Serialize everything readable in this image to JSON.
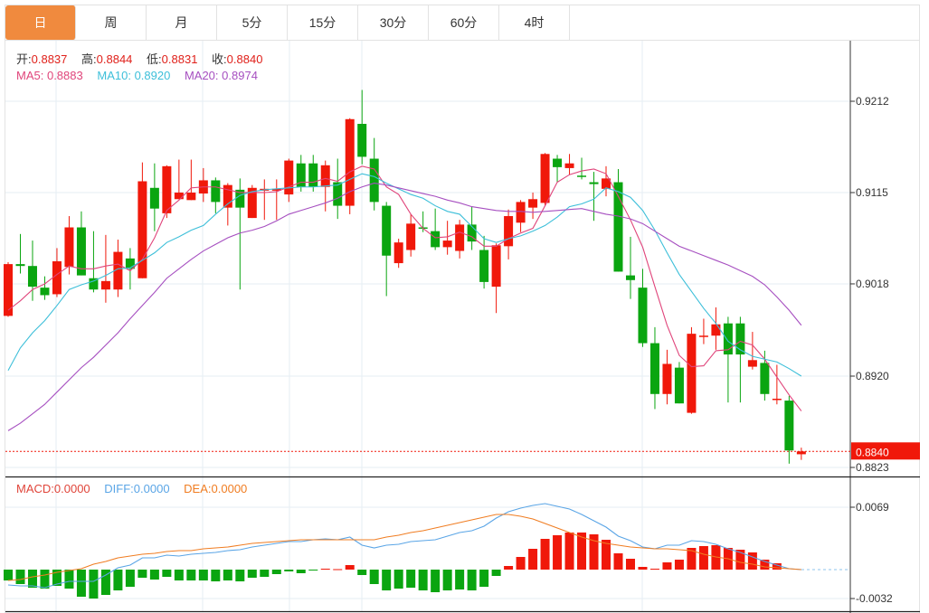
{
  "tabs": [
    {
      "label": "日",
      "active": true
    },
    {
      "label": "周",
      "active": false
    },
    {
      "label": "月",
      "active": false
    },
    {
      "label": "5分",
      "active": false
    },
    {
      "label": "15分",
      "active": false
    },
    {
      "label": "30分",
      "active": false
    },
    {
      "label": "60分",
      "active": false
    },
    {
      "label": "4时",
      "active": false
    }
  ],
  "ohlc_info": {
    "open_label": "开:",
    "open": "0.8837",
    "high_label": "高:",
    "high": "0.8844",
    "low_label": "低:",
    "low": "0.8831",
    "close_label": "收:",
    "close": "0.8840"
  },
  "ma_info": {
    "ma5_label": "MA5:",
    "ma5": "0.8883",
    "ma10_label": "MA10:",
    "ma10": "0.8920",
    "ma20_label": "MA20:",
    "ma20": "0.8974"
  },
  "macd_info": {
    "macd_label": "MACD:",
    "macd": "0.0000",
    "diff_label": "DIFF:",
    "diff": "0.0000",
    "dea_label": "DEA:",
    "dea": "0.0000"
  },
  "colors": {
    "up": "#f0180a",
    "down": "#0aa510",
    "ma5": "#e0457b",
    "ma10": "#3dbfd9",
    "ma20": "#a64fc0",
    "diff": "#5aa5e6",
    "dea": "#f07d22",
    "accent": "#f08a3e",
    "grid": "#e6edf3"
  },
  "chart_data": [
    {
      "type": "candlestick",
      "title": "Daily K-line",
      "price_axis_ticks": [
        "0.9212",
        "0.9115",
        "0.9018",
        "0.8920",
        "0.8823"
      ],
      "ylim": [
        0.8805,
        0.927
      ],
      "current_price": "0.8840",
      "candles_ohlc": [
        [
          0.8984,
          0.9041,
          0.8983,
          0.9039
        ],
        [
          0.9039,
          0.9071,
          0.9029,
          0.9037
        ],
        [
          0.9037,
          0.9064,
          0.9,
          0.9015
        ],
        [
          0.9014,
          0.9026,
          0.9001,
          0.9006
        ],
        [
          0.9007,
          0.9056,
          0.9004,
          0.9042
        ],
        [
          0.9036,
          0.909,
          0.9028,
          0.9078
        ],
        [
          0.9078,
          0.9095,
          0.9027,
          0.9027
        ],
        [
          0.9024,
          0.9074,
          0.9009,
          0.9012
        ],
        [
          0.9012,
          0.907,
          0.8998,
          0.9021
        ],
        [
          0.9012,
          0.9065,
          0.9004,
          0.9052
        ],
        [
          0.9045,
          0.9056,
          0.9012,
          0.9034
        ],
        [
          0.9024,
          0.9147,
          0.9024,
          0.9127
        ],
        [
          0.912,
          0.9146,
          0.9074,
          0.9098
        ],
        [
          0.9093,
          0.9144,
          0.9088,
          0.9143
        ],
        [
          0.9108,
          0.915,
          0.9108,
          0.9115
        ],
        [
          0.9107,
          0.915,
          0.9107,
          0.9115
        ],
        [
          0.9114,
          0.9141,
          0.9105,
          0.9128
        ],
        [
          0.9128,
          0.9131,
          0.9093,
          0.9105
        ],
        [
          0.9099,
          0.9125,
          0.908,
          0.9123
        ],
        [
          0.9118,
          0.913,
          0.9012,
          0.9099
        ],
        [
          0.9088,
          0.9123,
          0.9088,
          0.912
        ],
        [
          0.9117,
          0.9129,
          0.9086,
          0.9119
        ],
        [
          0.9117,
          0.9129,
          0.9086,
          0.9119
        ],
        [
          0.9113,
          0.9151,
          0.9105,
          0.9149
        ],
        [
          0.9146,
          0.9155,
          0.9116,
          0.9121
        ],
        [
          0.9146,
          0.9155,
          0.9116,
          0.9121
        ],
        [
          0.9121,
          0.9149,
          0.9095,
          0.9144
        ],
        [
          0.9126,
          0.9151,
          0.9087,
          0.9101
        ],
        [
          0.9101,
          0.9194,
          0.9092,
          0.9193
        ],
        [
          0.9188,
          0.9224,
          0.9145,
          0.9153
        ],
        [
          0.9151,
          0.9173,
          0.9096,
          0.9105
        ],
        [
          0.9101,
          0.9105,
          0.9005,
          0.9048
        ],
        [
          0.904,
          0.9066,
          0.9035,
          0.9062
        ],
        [
          0.9054,
          0.9092,
          0.9047,
          0.9082
        ],
        [
          0.9078,
          0.9095,
          0.9073,
          0.9077
        ],
        [
          0.9074,
          0.9098,
          0.9054,
          0.9057
        ],
        [
          0.9057,
          0.9085,
          0.9049,
          0.9064
        ],
        [
          0.9053,
          0.9086,
          0.9045,
          0.9081
        ],
        [
          0.9081,
          0.91,
          0.9054,
          0.9063
        ],
        [
          0.9054,
          0.9069,
          0.9013,
          0.902
        ],
        [
          0.9015,
          0.9061,
          0.8987,
          0.9059
        ],
        [
          0.9058,
          0.9097,
          0.9044,
          0.909
        ],
        [
          0.9083,
          0.9107,
          0.9073,
          0.9105
        ],
        [
          0.9099,
          0.9115,
          0.9087,
          0.9108
        ],
        [
          0.9104,
          0.9157,
          0.9101,
          0.9156
        ],
        [
          0.9151,
          0.9155,
          0.9126,
          0.9142
        ],
        [
          0.9141,
          0.9156,
          0.9134,
          0.9146
        ],
        [
          0.9133,
          0.9152,
          0.9129,
          0.9132
        ],
        [
          0.9126,
          0.9137,
          0.9085,
          0.9124
        ],
        [
          0.9119,
          0.9143,
          0.9111,
          0.913
        ],
        [
          0.9126,
          0.914,
          0.9031,
          0.9031
        ],
        [
          0.9027,
          0.9068,
          0.9002,
          0.9022
        ],
        [
          0.9014,
          0.9034,
          0.8951,
          0.8955
        ],
        [
          0.8955,
          0.8972,
          0.8885,
          0.8901
        ],
        [
          0.8901,
          0.8948,
          0.889,
          0.8933
        ],
        [
          0.8929,
          0.8935,
          0.8891,
          0.8891
        ],
        [
          0.8881,
          0.8972,
          0.888,
          0.8965
        ],
        [
          0.8962,
          0.8981,
          0.8954,
          0.8963
        ],
        [
          0.8963,
          0.8993,
          0.8948,
          0.8975
        ],
        [
          0.8976,
          0.8983,
          0.8892,
          0.8943
        ],
        [
          0.8976,
          0.8983,
          0.8892,
          0.8943
        ],
        [
          0.893,
          0.8967,
          0.8927,
          0.8937
        ],
        [
          0.8934,
          0.8947,
          0.8894,
          0.8901
        ],
        [
          0.8895,
          0.8932,
          0.889,
          0.8896
        ],
        [
          0.8894,
          0.8899,
          0.8827,
          0.8841
        ],
        [
          0.8837,
          0.8844,
          0.8831,
          0.884
        ]
      ],
      "series": [
        {
          "name": "MA5",
          "values": [
            0.899,
            0.9,
            0.9012,
            0.9018,
            0.9028,
            0.9037,
            0.9034,
            0.9034,
            0.9037,
            0.9039,
            0.9032,
            0.9044,
            0.9067,
            0.9096,
            0.9107,
            0.912,
            0.9121,
            0.9121,
            0.9118,
            0.9115,
            0.9115,
            0.9115,
            0.9116,
            0.9121,
            0.9126,
            0.9126,
            0.913,
            0.9127,
            0.9137,
            0.9143,
            0.914,
            0.9121,
            0.9113,
            0.9092,
            0.9077,
            0.9067,
            0.9068,
            0.9073,
            0.9068,
            0.9058,
            0.9058,
            0.9066,
            0.9072,
            0.9077,
            0.9101,
            0.9126,
            0.9134,
            0.9138,
            0.914,
            0.9135,
            0.9111,
            0.9086,
            0.9057,
            0.9015,
            0.8974,
            0.8942,
            0.893,
            0.8931,
            0.8947,
            0.8948,
            0.8957,
            0.8953,
            0.8938,
            0.8919,
            0.89,
            0.8883
          ]
        },
        {
          "name": "MA10",
          "values": [
            0.8926,
            0.895,
            0.8966,
            0.8979,
            0.8995,
            0.9012,
            0.9017,
            0.9021,
            0.9027,
            0.9034,
            0.9035,
            0.9043,
            0.9051,
            0.9062,
            0.9068,
            0.9075,
            0.908,
            0.9092,
            0.9103,
            0.9112,
            0.9116,
            0.9118,
            0.9119,
            0.912,
            0.9121,
            0.9121,
            0.9122,
            0.9123,
            0.9129,
            0.9135,
            0.9132,
            0.9125,
            0.9119,
            0.9113,
            0.9109,
            0.9101,
            0.9095,
            0.9092,
            0.9079,
            0.9066,
            0.9062,
            0.9066,
            0.9069,
            0.9074,
            0.908,
            0.9089,
            0.91,
            0.9103,
            0.9108,
            0.912,
            0.9116,
            0.911,
            0.9096,
            0.9075,
            0.9051,
            0.9028,
            0.901,
            0.8992,
            0.8976,
            0.8957,
            0.8948,
            0.8941,
            0.8938,
            0.8935,
            0.8928,
            0.892
          ]
        },
        {
          "name": "MA20",
          "values": [
            0.8862,
            0.887,
            0.888,
            0.889,
            0.8903,
            0.8916,
            0.8929,
            0.894,
            0.8953,
            0.8966,
            0.8981,
            0.8995,
            0.9009,
            0.9024,
            0.9034,
            0.9044,
            0.9053,
            0.906,
            0.9067,
            0.9072,
            0.9075,
            0.9079,
            0.9085,
            0.9092,
            0.9096,
            0.91,
            0.9104,
            0.9109,
            0.9116,
            0.9121,
            0.9125,
            0.9123,
            0.912,
            0.9117,
            0.9114,
            0.9111,
            0.9107,
            0.9104,
            0.91,
            0.9098,
            0.9096,
            0.9095,
            0.9095,
            0.9094,
            0.9095,
            0.9096,
            0.9097,
            0.9098,
            0.9095,
            0.9092,
            0.909,
            0.9087,
            0.9082,
            0.9074,
            0.9066,
            0.9058,
            0.9053,
            0.9048,
            0.9043,
            0.9038,
            0.9032,
            0.9026,
            0.9017,
            0.9004,
            0.899,
            0.8974
          ]
        }
      ]
    },
    {
      "type": "bar+line",
      "title": "MACD",
      "axis_ticks": [
        "0.0069",
        "-0.0032"
      ],
      "ylim": [
        -0.0045,
        0.009
      ],
      "macd_histogram": [
        -0.0012,
        -0.0016,
        -0.002,
        -0.0021,
        -0.0018,
        -0.0021,
        -0.003,
        -0.0032,
        -0.0028,
        -0.0023,
        -0.0019,
        -0.0009,
        -0.0011,
        -0.0008,
        -0.0012,
        -0.0012,
        -0.0012,
        -0.0013,
        -0.0012,
        -0.0013,
        -0.0009,
        -0.0008,
        -0.0005,
        -0.0002,
        -0.0004,
        -0.0001,
        0.0001,
        5e-05,
        0.0005,
        -0.0006,
        -0.0016,
        -0.0023,
        -0.0021,
        -0.002,
        -0.0023,
        -0.0025,
        -0.0023,
        -0.0022,
        -0.0023,
        -0.0019,
        -0.0007,
        0.0004,
        0.0014,
        0.0023,
        0.0034,
        0.0038,
        0.0041,
        0.0041,
        0.0039,
        0.0033,
        0.0018,
        0.0012,
        0.0003,
        0.0001,
        0.0008,
        0.0011,
        0.0024,
        0.0026,
        0.0027,
        0.0024,
        0.0022,
        0.0019,
        0.0011,
        0.0007,
        0,
        0
      ],
      "series": [
        {
          "name": "DIFF",
          "values": [
            -0.0017,
            -0.0018,
            -0.0018,
            -0.002,
            -0.0016,
            -0.0013,
            -0.0013,
            -0.0013,
            -0.0006,
            0.0002,
            0.0005,
            0.0013,
            0.0013,
            0.0016,
            0.0015,
            0.0017,
            0.0018,
            0.0019,
            0.0021,
            0.0022,
            0.0025,
            0.0027,
            0.0029,
            0.0031,
            0.0031,
            0.0033,
            0.0034,
            0.0033,
            0.0036,
            0.0027,
            0.0024,
            0.0027,
            0.0028,
            0.0031,
            0.0032,
            0.0033,
            0.0037,
            0.0041,
            0.0043,
            0.0048,
            0.0057,
            0.0064,
            0.0068,
            0.0071,
            0.0073,
            0.007,
            0.0067,
            0.0061,
            0.0054,
            0.0047,
            0.0037,
            0.0032,
            0.0025,
            0.0023,
            0.0027,
            0.0027,
            0.0032,
            0.0031,
            0.0028,
            0.0023,
            0.0019,
            0.0014,
            0.0009,
            0.0005,
            0.0001,
            0
          ]
        },
        {
          "name": "DEA",
          "values": [
            -0.0012,
            -0.0011,
            -0.0008,
            -0.0006,
            -0.0003,
            -0.0001,
            0.0001,
            0.0006,
            0.0009,
            0.0013,
            0.0015,
            0.0017,
            0.0018,
            0.002,
            0.0021,
            0.0021,
            0.0023,
            0.0024,
            0.0025,
            0.0027,
            0.0029,
            0.003,
            0.0031,
            0.0032,
            0.0033,
            0.0033,
            0.0033,
            0.0033,
            0.0033,
            0.0033,
            0.0033,
            0.0036,
            0.0038,
            0.0041,
            0.0043,
            0.0046,
            0.0049,
            0.0052,
            0.0055,
            0.0058,
            0.0061,
            0.0061,
            0.0059,
            0.0056,
            0.0051,
            0.0046,
            0.0041,
            0.0036,
            0.0032,
            0.0029,
            0.0027,
            0.0025,
            0.0024,
            0.0023,
            0.0023,
            0.0022,
            0.0021,
            0.0017,
            0.0014,
            0.0012,
            0.0008,
            0.0006,
            0.0003,
            0.0002,
            0.0001,
            0
          ]
        }
      ]
    }
  ]
}
